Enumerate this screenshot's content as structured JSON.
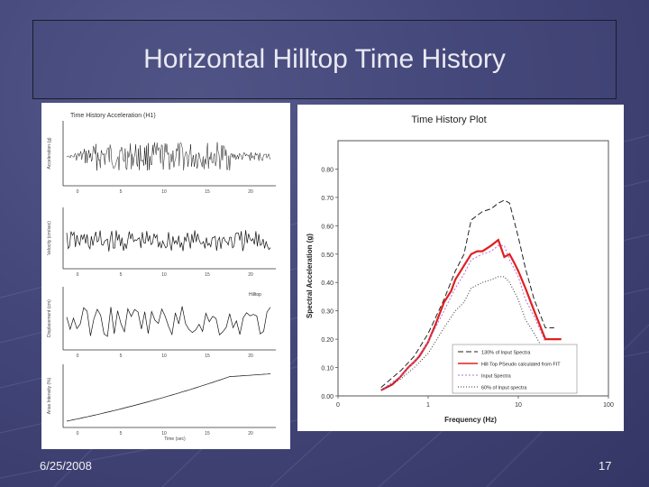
{
  "slide": {
    "title": "Horizontal Hilltop Time History",
    "date": "6/25/2008",
    "page_number": "17"
  },
  "left_figure": {
    "title": "Time History Acceleration (H1)",
    "x_tick_labels": [
      "0",
      "5",
      "10",
      "15",
      "20"
    ],
    "bottom_xlabel": "Time (sec)",
    "panel_labels": [
      "Acceleration (g)",
      "Velocity (cm/sec)",
      "Displacement (cm)",
      "Arias Intensity (%)"
    ],
    "panel_notes": [
      "",
      "",
      "Hilltop",
      ""
    ]
  },
  "chart_data": {
    "type": "line",
    "title": "Time History Plot",
    "xlabel": "Frequency (Hz)",
    "ylabel": "Spectral Acceleration (g)",
    "xscale": "log",
    "xlim": [
      0.1,
      100
    ],
    "ylim": [
      0,
      0.9
    ],
    "x_ticks": [
      0.1,
      1,
      10,
      100
    ],
    "x_tick_labels": [
      "0",
      "1",
      "10",
      "100"
    ],
    "y_ticks": [
      0,
      0.1,
      0.2,
      0.3,
      0.4,
      0.5,
      0.6,
      0.7,
      0.8
    ],
    "y_tick_labels": [
      "0.00",
      "0.10",
      "0.20",
      "0.30",
      "0.40",
      "0.50",
      "0.60",
      "0.70",
      "0.80"
    ],
    "legend_position": "bottom-right",
    "series": [
      {
        "name": "130% of Input Spectra",
        "color": "#222222",
        "dash": "6,3",
        "x": [
          0.3,
          0.5,
          0.7,
          1,
          1.5,
          2,
          2.5,
          3,
          4,
          5,
          6,
          7,
          8,
          10,
          12,
          15,
          20,
          25
        ],
        "y": [
          0.03,
          0.09,
          0.14,
          0.22,
          0.34,
          0.44,
          0.5,
          0.62,
          0.65,
          0.66,
          0.68,
          0.69,
          0.68,
          0.56,
          0.45,
          0.34,
          0.24,
          0.24
        ]
      },
      {
        "name": "Hill Top PSeudo calculated from FIT",
        "color": "#e02020",
        "dash": "",
        "x": [
          0.3,
          0.4,
          0.5,
          0.6,
          0.7,
          0.8,
          1,
          1.2,
          1.5,
          1.8,
          2,
          2.5,
          3,
          3.5,
          4,
          5,
          6,
          7,
          8,
          9,
          10,
          12,
          15,
          20,
          30
        ],
        "y": [
          0.02,
          0.04,
          0.07,
          0.1,
          0.12,
          0.14,
          0.19,
          0.25,
          0.33,
          0.37,
          0.41,
          0.46,
          0.5,
          0.51,
          0.51,
          0.53,
          0.55,
          0.49,
          0.5,
          0.47,
          0.44,
          0.38,
          0.3,
          0.2,
          0.2
        ]
      },
      {
        "name": "Input Spectra",
        "color": "#b070d8",
        "dash": "2,2",
        "x": [
          0.3,
          0.5,
          0.7,
          1,
          1.5,
          2,
          2.5,
          3,
          4,
          5,
          6,
          7,
          8,
          10,
          12,
          15,
          20
        ],
        "y": [
          0.02,
          0.07,
          0.12,
          0.19,
          0.3,
          0.38,
          0.43,
          0.48,
          0.5,
          0.51,
          0.53,
          0.53,
          0.48,
          0.42,
          0.34,
          0.28,
          0.19
        ]
      },
      {
        "name": "60% of Input spectra",
        "color": "#333333",
        "dash": "1,2",
        "x": [
          0.3,
          0.5,
          0.7,
          1,
          1.5,
          2,
          2.5,
          3,
          4,
          5,
          6,
          7,
          8,
          10,
          12,
          15,
          20
        ],
        "y": [
          0.02,
          0.06,
          0.1,
          0.15,
          0.24,
          0.3,
          0.33,
          0.38,
          0.4,
          0.41,
          0.42,
          0.42,
          0.4,
          0.34,
          0.27,
          0.22,
          0.15
        ]
      }
    ]
  }
}
